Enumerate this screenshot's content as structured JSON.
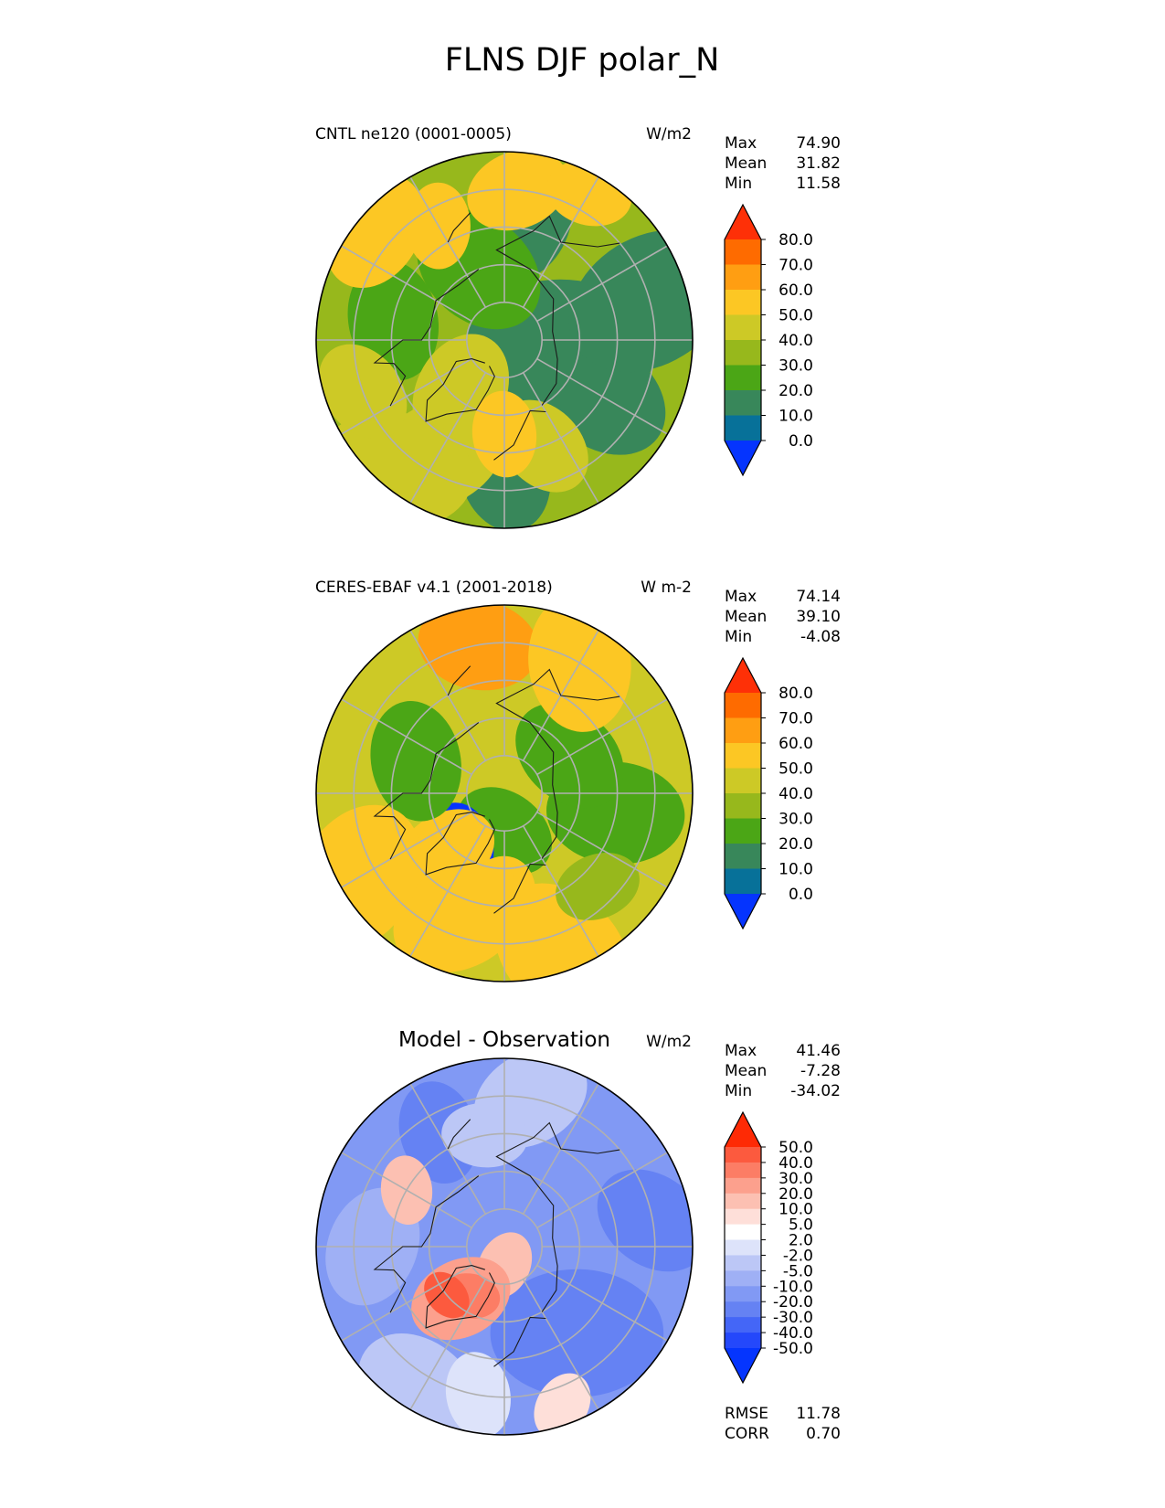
{
  "figure_title": "FLNS DJF polar_N",
  "chart_data": [
    {
      "type": "heatmap",
      "projection": "north-polar-stereographic",
      "title": "CNTL ne120 (0001-0005)",
      "units": "W/m2",
      "stats": [
        {
          "label": "Max",
          "value": "74.90"
        },
        {
          "label": "Mean",
          "value": "31.82"
        },
        {
          "label": "Min",
          "value": "11.58"
        }
      ],
      "colorbar": {
        "ticks": [
          "80.0",
          "70.0",
          "60.0",
          "50.0",
          "40.0",
          "30.0",
          "20.0",
          "10.0",
          "0.0"
        ],
        "colors": [
          "#fe3007",
          "#fe6b00",
          "#ff9e12",
          "#fcc724",
          "#cdc926",
          "#97b81c",
          "#4ba616",
          "#38875a",
          "#077199",
          "#0534fe"
        ],
        "extend": "both"
      },
      "field": {
        "background_class": 5,
        "blobs": [
          {
            "lat": 75,
            "lon": 80,
            "r": 22,
            "c": 7
          },
          {
            "lat": 60,
            "lon": 60,
            "r": 16,
            "c": 7
          },
          {
            "lat": 55,
            "lon": 0,
            "r": 14,
            "c": 7
          },
          {
            "lat": 58,
            "lon": 170,
            "r": 14,
            "c": 7
          },
          {
            "lat": 50,
            "lon": 105,
            "r": 20,
            "c": 7
          },
          {
            "lat": 80,
            "lon": -160,
            "r": 8,
            "c": 7
          },
          {
            "lat": 70,
            "lon": -160,
            "r": 16,
            "c": 6
          },
          {
            "lat": 60,
            "lon": -100,
            "r": 14,
            "c": 6
          },
          {
            "lat": 72,
            "lon": -40,
            "r": 14,
            "c": 4
          },
          {
            "lat": 55,
            "lon": -30,
            "r": 16,
            "c": 4
          },
          {
            "lat": 45,
            "lon": -40,
            "r": 18,
            "c": 4
          },
          {
            "lat": 60,
            "lon": 20,
            "r": 12,
            "c": 4
          },
          {
            "lat": 65,
            "lon": 0,
            "r": 10,
            "c": 3
          },
          {
            "lat": 45,
            "lon": -130,
            "r": 14,
            "c": 3
          },
          {
            "lat": 50,
            "lon": 175,
            "r": 12,
            "c": 3
          },
          {
            "lat": 45,
            "lon": 150,
            "r": 10,
            "c": 3
          },
          {
            "lat": 50,
            "lon": -70,
            "r": 12,
            "c": 4
          },
          {
            "lat": 55,
            "lon": -150,
            "r": 10,
            "c": 3
          }
        ]
      }
    },
    {
      "type": "heatmap",
      "projection": "north-polar-stereographic",
      "title": "CERES-EBAF v4.1 (2001-2018)",
      "units": "W m-2",
      "stats": [
        {
          "label": "Max",
          "value": "74.14"
        },
        {
          "label": "Mean",
          "value": "39.10"
        },
        {
          "label": "Min",
          "value": "-4.08"
        }
      ],
      "colorbar": {
        "ticks": [
          "80.0",
          "70.0",
          "60.0",
          "50.0",
          "40.0",
          "30.0",
          "20.0",
          "10.0",
          "0.0"
        ],
        "colors": [
          "#fe3007",
          "#fe6b00",
          "#ff9e12",
          "#fcc724",
          "#cdc926",
          "#97b81c",
          "#4ba616",
          "#38875a",
          "#077199",
          "#0534fe"
        ],
        "extend": "both"
      },
      "field": {
        "background_class": 4,
        "blobs": [
          {
            "lat": 85,
            "lon": 0,
            "r": 6,
            "c": 7
          },
          {
            "lat": 80,
            "lon": 0,
            "r": 12,
            "c": 6
          },
          {
            "lat": 72,
            "lon": -40,
            "r": 10,
            "c": 9
          },
          {
            "lat": 74,
            "lon": -35,
            "r": 6,
            "c": 8
          },
          {
            "lat": 68,
            "lon": -45,
            "r": 12,
            "c": 3
          },
          {
            "lat": 60,
            "lon": 80,
            "r": 16,
            "c": 6
          },
          {
            "lat": 70,
            "lon": 120,
            "r": 14,
            "c": 6
          },
          {
            "lat": 65,
            "lon": -110,
            "r": 14,
            "c": 6
          },
          {
            "lat": 60,
            "lon": -5,
            "r": 12,
            "c": 3
          },
          {
            "lat": 55,
            "lon": -20,
            "r": 16,
            "c": 3
          },
          {
            "lat": 50,
            "lon": -170,
            "r": 14,
            "c": 2
          },
          {
            "lat": 45,
            "lon": 20,
            "r": 18,
            "c": 3
          },
          {
            "lat": 50,
            "lon": 150,
            "r": 16,
            "c": 3
          },
          {
            "lat": 45,
            "lon": -60,
            "r": 18,
            "c": 3
          },
          {
            "lat": 55,
            "lon": 45,
            "r": 10,
            "c": 5
          }
        ]
      }
    },
    {
      "type": "heatmap",
      "projection": "north-polar-stereographic",
      "title": "Model - Observation",
      "units": "W/m2",
      "stats": [
        {
          "label": "Max",
          "value": "41.46"
        },
        {
          "label": "Mean",
          "value": "-7.28"
        },
        {
          "label": "Min",
          "value": "-34.02"
        }
      ],
      "extra_stats": [
        {
          "label": "RMSE",
          "value": "11.78"
        },
        {
          "label": "CORR",
          "value": "0.70"
        }
      ],
      "colorbar": {
        "ticks": [
          "50.0",
          "40.0",
          "30.0",
          "20.0",
          "10.0",
          "5.0",
          "2.0",
          "-2.0",
          "-5.0",
          "-10.0",
          "-20.0",
          "-30.0",
          "-40.0",
          "-50.0"
        ],
        "colors": [
          "#fe2a05",
          "#fc5a3e",
          "#fc7d65",
          "#fca08d",
          "#fcc0b2",
          "#fedfd9",
          "#ffffff",
          "#dde3fa",
          "#bcc7f6",
          "#9fb0f5",
          "#8199f4",
          "#6582f3",
          "#4466f7",
          "#2448fb",
          "#0535fe"
        ],
        "extend": "both"
      },
      "field": {
        "background_class": 10,
        "blobs": [
          {
            "lat": 60,
            "lon": 40,
            "r": 20,
            "c": 11
          },
          {
            "lat": 50,
            "lon": 100,
            "r": 14,
            "c": 11
          },
          {
            "lat": 55,
            "lon": -150,
            "r": 12,
            "c": 11
          },
          {
            "lat": 55,
            "lon": -90,
            "r": 14,
            "c": 9
          },
          {
            "lat": 50,
            "lon": 170,
            "r": 14,
            "c": 8
          },
          {
            "lat": 60,
            "lon": -170,
            "r": 10,
            "c": 8
          },
          {
            "lat": 45,
            "lon": -30,
            "r": 16,
            "c": 8
          },
          {
            "lat": 50,
            "lon": -10,
            "r": 10,
            "c": 7
          },
          {
            "lat": 85,
            "lon": 0,
            "r": 8,
            "c": 4
          },
          {
            "lat": 72,
            "lon": -40,
            "r": 12,
            "c": 3
          },
          {
            "lat": 74,
            "lon": -35,
            "r": 7,
            "c": 2
          },
          {
            "lat": 70,
            "lon": -50,
            "r": 6,
            "c": 1
          },
          {
            "lat": 60,
            "lon": -120,
            "r": 8,
            "c": 4
          },
          {
            "lat": 45,
            "lon": 20,
            "r": 8,
            "c": 5
          }
        ]
      }
    }
  ]
}
